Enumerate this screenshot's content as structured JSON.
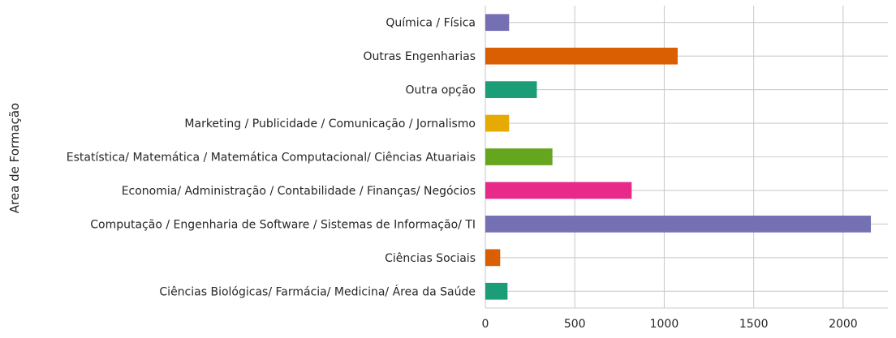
{
  "chart_data": {
    "type": "bar",
    "orientation": "horizontal",
    "title": "",
    "xlabel": "",
    "ylabel": "Area de Formação",
    "xlim": [
      0,
      2250
    ],
    "xticks": [
      0,
      500,
      1000,
      1500,
      2000
    ],
    "grid": true,
    "legend": "none",
    "categories": [
      "Química / Física",
      "Outras Engenharias",
      "Outra opção",
      "Marketing / Publicidade / Comunicação / Jornalismo",
      "Estatística/ Matemática / Matemática Computacional/ Ciências Atuariais",
      "Economia/ Administração / Contabilidade / Finanças/ Negócios",
      "Computação / Engenharia de Software / Sistemas de Informação/ TI",
      "Ciências Sociais",
      "Ciências Biológicas/ Farmácia/ Medicina/ Área da Saúde"
    ],
    "values": [
      133,
      1075,
      288,
      133,
      375,
      818,
      2155,
      83,
      124
    ],
    "colors": [
      "#7570b3",
      "#d95f02",
      "#1b9e77",
      "#e6ab02",
      "#66a61e",
      "#e7298a",
      "#7570b3",
      "#d95f02",
      "#1b9e77"
    ]
  }
}
